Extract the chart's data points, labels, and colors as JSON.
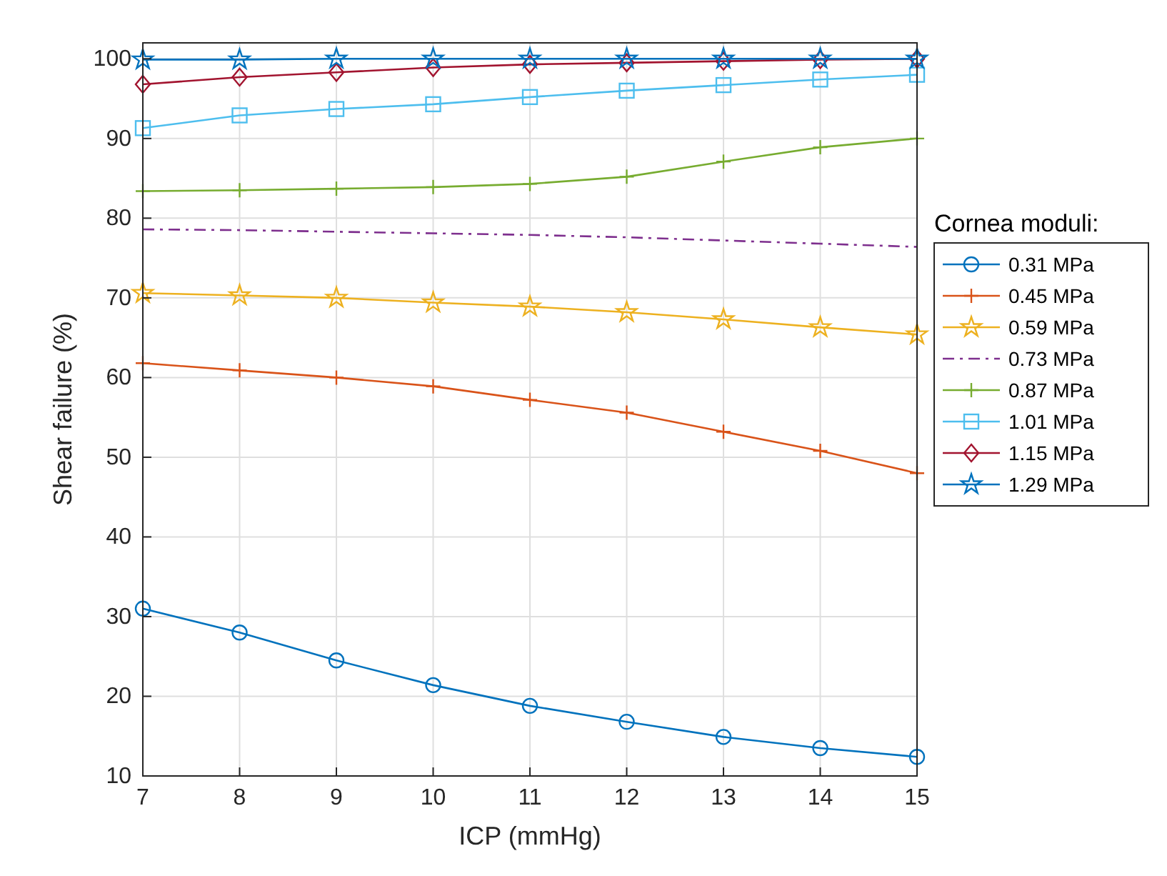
{
  "chart_data": {
    "type": "line",
    "xlabel": "ICP (mmHg)",
    "ylabel": "Shear failure (%)",
    "legend_title": "Cornea moduli:",
    "legend": "right",
    "grid": true,
    "x": [
      7,
      8,
      9,
      10,
      11,
      12,
      13,
      14,
      15
    ],
    "xlim": [
      7,
      15
    ],
    "xticks": [
      7,
      8,
      9,
      10,
      11,
      12,
      13,
      14,
      15
    ],
    "ylim": [
      10,
      102
    ],
    "yticks": [
      10,
      20,
      30,
      40,
      50,
      60,
      70,
      80,
      90,
      100
    ],
    "series": [
      {
        "name": "0.31 MPa",
        "color": "#0072bd",
        "marker": "circle",
        "values": [
          31,
          28,
          24.5,
          21.4,
          18.8,
          16.8,
          14.9,
          13.5,
          12.4
        ]
      },
      {
        "name": "0.45 MPa",
        "color": "#d95319",
        "marker": "cross",
        "values": [
          61.8,
          60.9,
          60,
          58.9,
          57.2,
          55.6,
          53.2,
          50.8,
          48
        ]
      },
      {
        "name": "0.59 MPa",
        "color": "#edb120",
        "marker": "star",
        "values": [
          70.6,
          70.3,
          70,
          69.4,
          68.9,
          68.2,
          67.3,
          66.3,
          65.4
        ]
      },
      {
        "name": "0.73 MPa",
        "color": "#7e2f8e",
        "marker": "none",
        "line_style": "dashed",
        "values": [
          78.6,
          78.5,
          78.3,
          78.1,
          77.9,
          77.6,
          77.2,
          76.8,
          76.4
        ]
      },
      {
        "name": "0.87 MPa",
        "color": "#77ac30",
        "marker": "cross",
        "values": [
          83.4,
          83.5,
          83.7,
          83.9,
          84.3,
          85.2,
          87.1,
          88.9,
          90
        ]
      },
      {
        "name": "1.01 MPa",
        "color": "#4dbeee",
        "marker": "square",
        "values": [
          91.3,
          92.9,
          93.7,
          94.3,
          95.2,
          96,
          96.7,
          97.4,
          98
        ]
      },
      {
        "name": "1.15 MPa",
        "color": "#a2142f",
        "marker": "diamond",
        "values": [
          96.8,
          97.7,
          98.3,
          98.9,
          99.3,
          99.5,
          99.7,
          99.9,
          100
        ]
      },
      {
        "name": "1.29 MPa",
        "color": "#0072bd",
        "marker": "star",
        "values": [
          99.9,
          99.9,
          100,
          100,
          100,
          100,
          100,
          100,
          100
        ]
      }
    ]
  }
}
